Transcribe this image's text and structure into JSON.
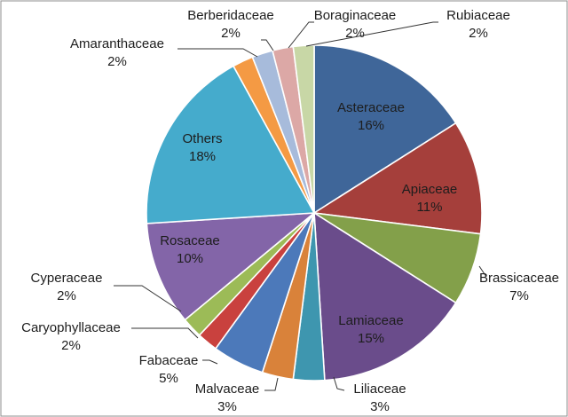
{
  "chart_data": {
    "type": "pie",
    "categories": [
      "Asteraceae",
      "Apiaceae",
      "Brassicaceae",
      "Lamiaceae",
      "Liliaceae",
      "Malvaceae",
      "Fabaceae",
      "Caryophyllaceae",
      "Cyperaceae",
      "Rosaceae",
      "Others",
      "Amaranthaceae",
      "Berberidaceae",
      "Boraginaceae",
      "Rubiaceae"
    ],
    "values": [
      16,
      11,
      7,
      15,
      3,
      3,
      5,
      2,
      2,
      10,
      18,
      2,
      2,
      2,
      2
    ],
    "value_labels": [
      "16%",
      "11%",
      "7%",
      "15%",
      "3%",
      "3%",
      "5%",
      "2%",
      "2%",
      "10%",
      "18%",
      "2%",
      "2%",
      "2%",
      "2%"
    ],
    "colors": [
      "#3F6699",
      "#A53F3B",
      "#83A04A",
      "#6A4C8B",
      "#3E96AF",
      "#D9823A",
      "#4C79BA",
      "#C9413E",
      "#9CBB57",
      "#8365A8",
      "#45ABCC",
      "#F49A44",
      "#A7BBDB",
      "#DCA8A6",
      "#C8D7A6"
    ],
    "start": "12 o'clock",
    "direction": "clockwise",
    "legend": "none"
  }
}
